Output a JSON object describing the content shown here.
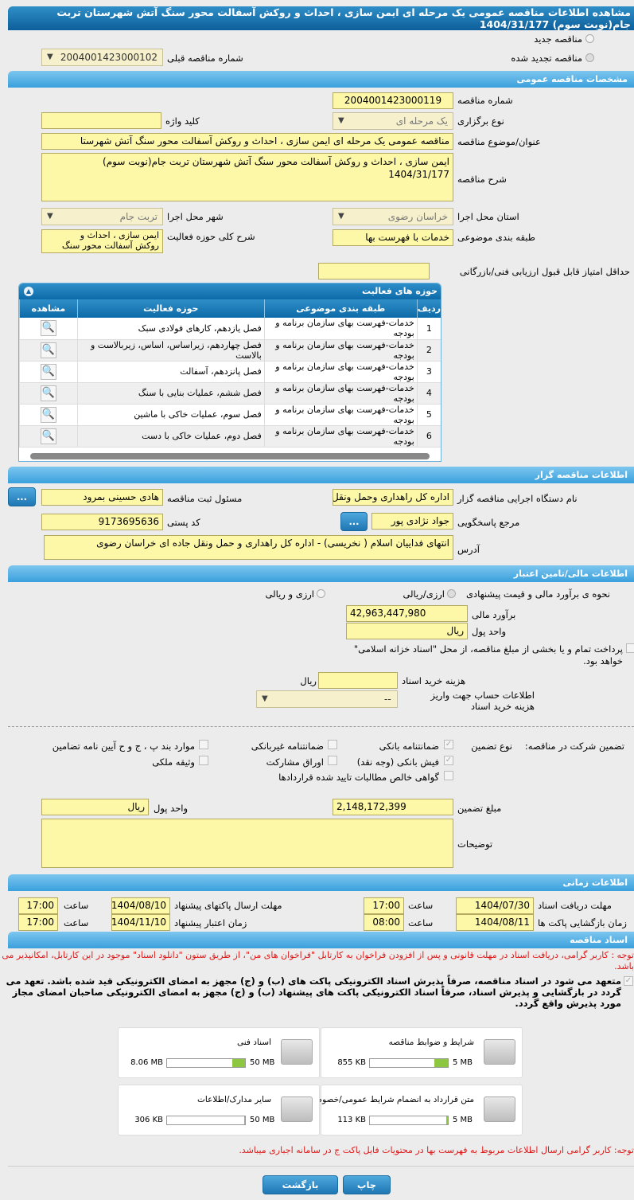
{
  "title": "مشاهده اطلاعات مناقصه عمومی یک مرحله ای ایمن سازی ، احداث و روکش آسفالت محور سنگ آتش شهرستان تربت جام(نوبت سوم) 1404/31/177",
  "radios": {
    "new": "مناقصه جدید",
    "renewed": "مناقصه تجدید شده",
    "prev_label": "شماره مناقصه قبلی",
    "prev_value": "2004001423000102"
  },
  "general": {
    "header": "مشخصات مناقصه عمومی",
    "number_label": "شماره مناقصه",
    "number": "2004001423000119",
    "type_label": "نوع برگزاری",
    "type": "یک مرحله ای",
    "keyword_label": "کلید واژه",
    "keyword": "",
    "subject_label": "عنوان/موضوع مناقصه",
    "subject": "مناقصه عمومی یک مرحله ای ایمن سازی ، احداث و روکش آسفالت محور سنگ آتش شهرستا",
    "desc_label": "شرح مناقصه",
    "desc": "ایمن سازی ، احداث و روکش آسفالت محور سنگ آتش شهرستان تربت جام(نوبت سوم) 1404/31/177",
    "province_label": "استان محل اجرا",
    "province": "خراسان رضوی",
    "city_label": "شهر محل اجرا",
    "city": "تربت جام",
    "category_label": "طبقه بندی موضوعی",
    "category": "خدمات با فهرست بها",
    "activity_desc_label": "شرح کلی حوزه فعالیت",
    "activity_desc": "ایمن سازی ، احداث و روکش آسفالت محور سنگ",
    "min_score_label": "حداقل امتیاز قابل قبول ارزیابی فنی/بازرگانی",
    "min_score": ""
  },
  "activities": {
    "header": "حوزه های فعالیت",
    "columns": [
      "ردیف",
      "طبقه بندی موضوعی",
      "حوزه فعالیت",
      "مشاهده"
    ],
    "rows": [
      {
        "n": "1",
        "cat": "خدمات-فهرست بهای سازمان برنامه و بودجه",
        "area": "فصل یازدهم، کارهای فولادی سبک"
      },
      {
        "n": "2",
        "cat": "خدمات-فهرست بهای سازمان برنامه و بودجه",
        "area": "فصل چهاردهم، زیراساس، اساس، زیربالاست  و بالاست"
      },
      {
        "n": "3",
        "cat": "خدمات-فهرست بهای سازمان برنامه و بودجه",
        "area": "فصل پانزدهم، آسفالت"
      },
      {
        "n": "4",
        "cat": "خدمات-فهرست بهای سازمان برنامه و بودجه",
        "area": "فصل ششم، عملیات بنایی با سنگ"
      },
      {
        "n": "5",
        "cat": "خدمات-فهرست بهای سازمان برنامه و بودجه",
        "area": "فصل سوم، عملیات خاکی با ماشین"
      },
      {
        "n": "6",
        "cat": "خدمات-فهرست بهای سازمان برنامه و بودجه",
        "area": "فصل دوم، عملیات خاکی با دست"
      }
    ]
  },
  "organizer": {
    "header": "اطلاعات مناقصه گزار",
    "org_label": "نام دستگاه اجرایی مناقصه گزار",
    "org": "اداره کل راهداری وحمل ونقل",
    "resp_label": "مسئول ثبت مناقصه",
    "resp": "هادی حسینی بمرود",
    "ref_label": "مرجع پاسخگویی",
    "ref": "جواد نژادی پور",
    "postal_label": "کد پستی",
    "postal": "9173695636",
    "address_label": "آدرس",
    "address": "انتهای فداییان اسلام ( نخریسی) - اداره کل راهداری و حمل ونقل جاده ای خراسان رضوی",
    "more": "..."
  },
  "finance": {
    "header": "اطلاعات مالی/تامین اعتبار",
    "method_label": "نحوه ی برآورد مالی و قیمت پیشنهادی",
    "opt1": "ارزی/ریالی",
    "opt2": "ارزی و ریالی",
    "estimate_label": "برآورد مالی",
    "estimate": "42,963,447,980",
    "currency_label": "واحد پول",
    "currency": "ریال",
    "treasury": "پرداخت تمام و یا بخشی از مبلغ مناقصه، از محل \"اسناد خزانه اسلامی\" خواهد بود.",
    "doc_fee_label": "هزینه خرید اسناد",
    "doc_fee": "",
    "doc_fee_unit": "ریال",
    "account_label": "اطلاعات حساب جهت واریز هزینه خرید اسناد",
    "account": "--"
  },
  "guarantee": {
    "label": "تضمین شرکت در مناقصه:",
    "type_label": "نوع تضمین",
    "options": [
      "ضمانتنامه بانکی",
      "فیش بانکی (وجه نقد)",
      "گواهی خالص مطالبات تایید شده قراردادها",
      "ضمانتنامه غیربانکی",
      "اوراق مشارکت",
      "موارد بند پ ، ج و ح آیین نامه تضامین",
      "وثیقه ملکی"
    ],
    "amount_label": "مبلغ تضمین",
    "amount": "2,148,172,399",
    "currency_label": "واحد پول",
    "currency": "ریال",
    "notes_label": "توضیحات",
    "notes": ""
  },
  "timing": {
    "header": "اطلاعات زمانی",
    "doc_deadline_label": "مهلت دریافت اسناد",
    "doc_deadline": "1404/07/30",
    "time_label": "ساعت",
    "doc_time": "17:00",
    "send_label": "مهلت ارسال پاکتهای پیشنهاد",
    "send": "1404/08/10",
    "send_time": "17:00",
    "open_label": "زمان بازگشایی پاکت ها",
    "open": "1404/08/11",
    "open_time": "08:00",
    "valid_label": "زمان اعتبار پیشنهاد",
    "valid": "1404/11/10",
    "valid_time": "17:00"
  },
  "docs": {
    "header": "اسناد مناقصه",
    "note": "توجه : کاربر گرامی، دریافت اسناد در مهلت قانونی و پس از افزودن فراخوان به کارتابل \"فراخوان های من\"، از طریق ستون \"دانلود اسناد\" موجود در این کارتابل، امکانپذیر می باشد.",
    "commit": "متعهد می شود در اسناد مناقصه، صرفاً پذیرش اسناد الکترونیکی پاکت های (ب) و (ج) مجهز به امضای الکترونیکی قید شده باشد. تعهد می گردد در بازگشایی و پذیرش اسناد، صرفاً اسناد الکترونیکی پاکت های پیشنهاد (ب) و (ج) مجهز به امضای الکترونیکی صاحبان امضای مجاز مورد پذیرش واقع گردد.",
    "files": [
      {
        "name": "شرایط و ضوابط مناقصه",
        "size": "855 KB",
        "max": "5 MB",
        "fill": 0.17
      },
      {
        "name": "اسناد فنی",
        "size": "8.06 MB",
        "max": "50 MB",
        "fill": 0.16
      },
      {
        "name": "متن قرارداد به انضمام شرایط عمومی/خصوصی",
        "size": "113 KB",
        "max": "5 MB",
        "fill": 0.02
      },
      {
        "name": "سایر مدارک/اطلاعات",
        "size": "306 KB",
        "max": "50 MB",
        "fill": 0.01
      }
    ],
    "footer_note": "توجه: کاربر گرامی ارسال اطلاعات مربوط به فهرست بها در محتویات فایل پاکت ج در سامانه اجباری میباشد."
  },
  "buttons": {
    "print": "چاپ",
    "back": "بازگشت"
  }
}
